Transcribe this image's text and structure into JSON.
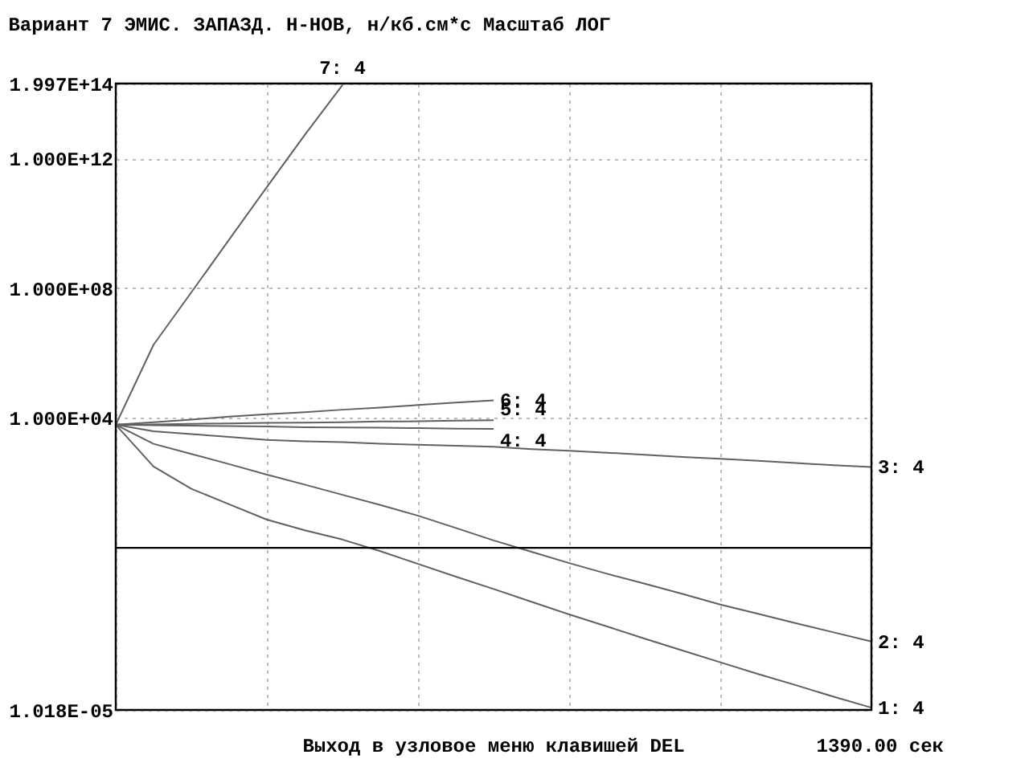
{
  "chart_data": {
    "type": "line",
    "title": "Вариант  7     ЭМИС. ЗАПАЗД. Н-НОВ, н/кб.см*с   Масштаб ЛОГ",
    "annotations": [
      "Выход в узловое меню клавишей DEL",
      "1390.00 сек"
    ],
    "log": "y",
    "grid": true,
    "legend": false,
    "marker": "none",
    "line_style": "solid",
    "categories": [
      null,
      null,
      null,
      null,
      null,
      null,
      null,
      null,
      null,
      null,
      null,
      null,
      null,
      null,
      null,
      null,
      null,
      null,
      null,
      null,
      null
    ],
    "ylim": [
      1.018e-05,
      199700000000000.0
    ],
    "yticks": [
      {
        "value": 1.018e-05,
        "label": "1.018E-05"
      },
      {
        "value": 10000,
        "label": "1.000E+04"
      },
      {
        "value": 100000000,
        "label": "1.000E+08"
      },
      {
        "value": 1000000000000,
        "label": "1.000E+12"
      },
      {
        "value": 199700000000000.0,
        "label": "1.997E+14"
      }
    ],
    "ref_lines": [
      {
        "axis": "y",
        "value": 1,
        "label": null,
        "color": "#000000",
        "line_style": "solid"
      }
    ],
    "series": [
      {
        "name": "1: 4",
        "color": "#606060",
        "values": [
          6200,
          320,
          66,
          22,
          7.4,
          3.5,
          1.8,
          0.79,
          0.32,
          0.13,
          0.054,
          0.022,
          0.0089,
          0.0038,
          0.0016,
          0.00069,
          0.0003,
          0.00013,
          5.9e-05,
          2.6e-05,
          1.2e-05
        ]
      },
      {
        "name": "2: 4",
        "color": "#606060",
        "values": [
          6200,
          1600,
          780,
          380,
          180,
          89,
          43,
          21,
          9.8,
          4.1,
          1.7,
          0.76,
          0.34,
          0.16,
          0.079,
          0.038,
          0.018,
          0.0093,
          0.0048,
          0.0025,
          0.0013
        ]
      },
      {
        "name": "3: 4",
        "color": "#606060",
        "values": [
          6200,
          3900,
          3200,
          2600,
          2100,
          1900,
          1800,
          1600,
          1500,
          1400,
          1300,
          1100,
          980,
          850,
          740,
          630,
          550,
          480,
          410,
          350,
          310
        ]
      },
      {
        "name": "4: 4",
        "color": "#606060",
        "values": [
          6200,
          6000,
          5800,
          5600,
          5500,
          5200,
          5100,
          5000,
          4900,
          4700,
          4600,
          null,
          null,
          null,
          null,
          null,
          null,
          null,
          null,
          null,
          null
        ]
      },
      {
        "name": "5: 4",
        "color": "#606060",
        "values": [
          6200,
          6300,
          6600,
          6800,
          7100,
          7200,
          7400,
          7800,
          7900,
          8300,
          8500,
          null,
          null,
          null,
          null,
          null,
          null,
          null,
          null,
          null,
          null
        ]
      },
      {
        "name": "6: 4",
        "color": "#606060",
        "values": [
          6200,
          7400,
          8900,
          11000,
          13000,
          15000,
          18000,
          21000,
          25000,
          30000,
          35000,
          null,
          null,
          null,
          null,
          null,
          null,
          null,
          null,
          null,
          null
        ]
      },
      {
        "name": "7: 4",
        "color": "#606060",
        "values": [
          6200,
          1800000,
          74000000,
          3100000000,
          130000000000,
          5200000000000,
          180000000000000,
          null,
          null,
          null,
          null,
          null,
          null,
          null,
          null,
          null,
          null,
          null,
          null,
          null,
          null
        ]
      }
    ]
  }
}
